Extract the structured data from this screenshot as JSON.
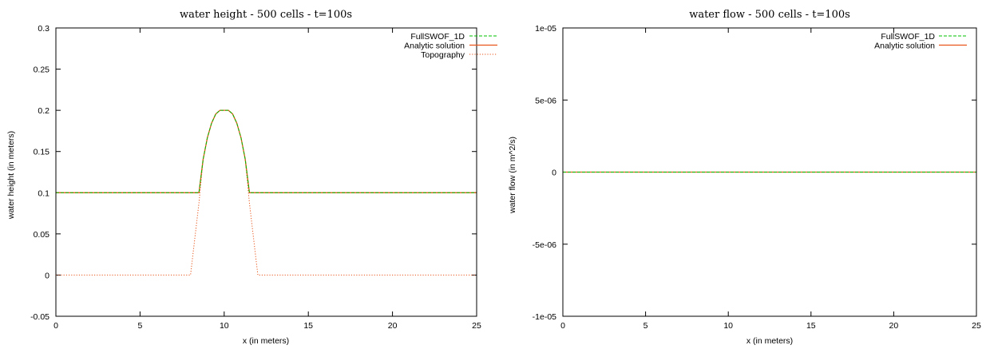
{
  "chart_data": [
    {
      "type": "line",
      "title": "water height - 500 cells - t=100s",
      "xlabel": "x (in meters)",
      "ylabel": "water height (in meters)",
      "xlim": [
        0,
        25
      ],
      "ylim": [
        -0.05,
        0.3
      ],
      "xticks": [
        "0",
        "5",
        "10",
        "15",
        "20",
        "25"
      ],
      "yticks": [
        "-0.05",
        "0",
        "0.05",
        "0.1",
        "0.15",
        "0.2",
        "0.25",
        "0.3"
      ],
      "legend_position": "top-right",
      "series": [
        {
          "name": "FullSWOF_1D",
          "color": "#00c000",
          "dash": "dashed",
          "x": [
            0,
            8.5,
            8.75,
            9.0,
            9.25,
            9.5,
            9.75,
            10.0,
            10.25,
            10.5,
            10.75,
            11.0,
            11.25,
            11.5,
            25
          ],
          "y": [
            0.1,
            0.1,
            0.1406,
            0.1667,
            0.1844,
            0.1956,
            0.2,
            0.2,
            0.2,
            0.1956,
            0.1844,
            0.1667,
            0.1406,
            0.1,
            0.1
          ]
        },
        {
          "name": "Analytic solution",
          "color": "#e8541a",
          "dash": "solid",
          "x": [
            0,
            8.5,
            8.75,
            9.0,
            9.25,
            9.5,
            9.75,
            10.0,
            10.25,
            10.5,
            10.75,
            11.0,
            11.25,
            11.5,
            25
          ],
          "y": [
            0.1,
            0.1,
            0.1406,
            0.1667,
            0.1844,
            0.1956,
            0.2,
            0.2,
            0.2,
            0.1956,
            0.1844,
            0.1667,
            0.1406,
            0.1,
            0.1
          ]
        },
        {
          "name": "Topography",
          "color": "#e8541a",
          "dash": "dotted",
          "x": [
            0,
            8.0,
            8.5,
            8.75,
            9.0,
            9.25,
            9.5,
            9.75,
            10.0,
            10.25,
            10.5,
            10.75,
            11.0,
            11.25,
            11.5,
            12.0,
            25
          ],
          "y": [
            0,
            0,
            0.0875,
            0.1406,
            0.1667,
            0.1844,
            0.1956,
            0.2,
            0.2,
            0.2,
            0.1956,
            0.1844,
            0.1667,
            0.1406,
            0.0875,
            0,
            0
          ]
        }
      ]
    },
    {
      "type": "line",
      "title": "water flow - 500 cells - t=100s",
      "xlabel": "x (in meters)",
      "ylabel": "water flow (in m^2/s)",
      "xlim": [
        0,
        25
      ],
      "ylim": [
        -1e-05,
        1e-05
      ],
      "xticks": [
        "0",
        "5",
        "10",
        "15",
        "20",
        "25"
      ],
      "yticks": [
        "-1e-05",
        "-5e-06",
        "0",
        "5e-06",
        "1e-05"
      ],
      "legend_position": "top-right",
      "series": [
        {
          "name": "FullSWOF_1D",
          "color": "#00c000",
          "dash": "dashed",
          "x": [
            0,
            25
          ],
          "y": [
            0,
            0
          ]
        },
        {
          "name": "Analytic solution",
          "color": "#e8541a",
          "dash": "solid",
          "x": [
            0,
            25
          ],
          "y": [
            0,
            0
          ]
        }
      ]
    }
  ]
}
